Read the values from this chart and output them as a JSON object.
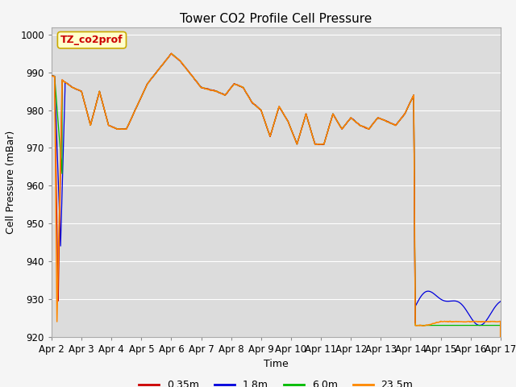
{
  "title": "Tower CO2 Profile Cell Pressure",
  "xlabel": "Time",
  "ylabel": "Cell Pressure (mBar)",
  "ylim": [
    920,
    1002
  ],
  "xlim": [
    0,
    15
  ],
  "xtick_labels": [
    "Apr 2",
    "Apr 3",
    "Apr 4",
    "Apr 5",
    "Apr 6",
    "Apr 7",
    "Apr 8",
    "Apr 9",
    "Apr 10",
    "Apr 11",
    "Apr 12",
    "Apr 13",
    "Apr 14",
    "Apr 15",
    "Apr 16",
    "Apr 17"
  ],
  "xtick_positions": [
    0,
    1,
    2,
    3,
    4,
    5,
    6,
    7,
    8,
    9,
    10,
    11,
    12,
    13,
    14,
    15
  ],
  "ytick_labels": [
    "920",
    "930",
    "940",
    "950",
    "960",
    "970",
    "980",
    "990",
    "1000"
  ],
  "ytick_values": [
    920,
    930,
    940,
    950,
    960,
    970,
    980,
    990,
    1000
  ],
  "colors": {
    "0.35m": "#cc0000",
    "1.8m": "#0000dd",
    "6.0m": "#00bb00",
    "23.5m": "#ff8800"
  },
  "legend_label": "TZ_co2prof",
  "legend_box_facecolor": "#ffffcc",
  "legend_box_edgecolor": "#ccaa00",
  "plot_bg": "#dcdcdc",
  "fig_bg": "#f5f5f5",
  "grid_color": "#ffffff",
  "title_fontsize": 11,
  "axis_label_fontsize": 9,
  "tick_fontsize": 8.5
}
